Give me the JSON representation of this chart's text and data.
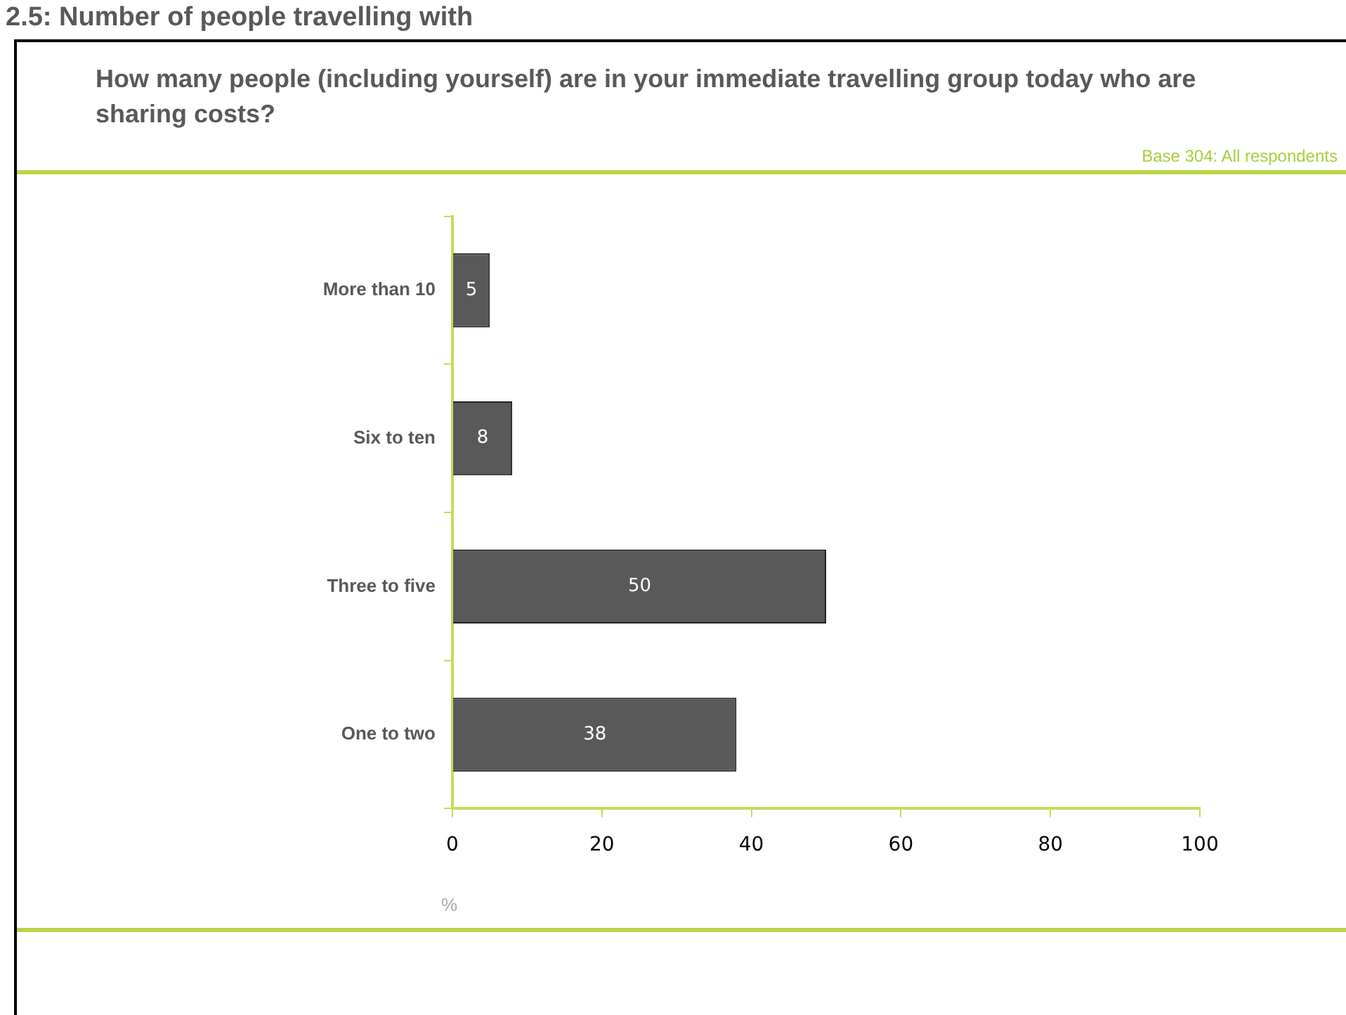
{
  "chart_data": {
    "type": "bar",
    "orientation": "horizontal",
    "title": "2.5: Number of people travelling with",
    "subtitle": "How many people (including yourself) are in your immediate travelling group today who are sharing costs?",
    "annotations": [
      "Base 304: All respondents"
    ],
    "xlabel": "%",
    "categories": [
      "More than 10",
      "Six to ten",
      "Three to five",
      "One to two"
    ],
    "values": [
      5,
      8,
      50,
      38
    ],
    "color": "#595959",
    "xlim": [
      0,
      100
    ],
    "xticks": [
      0,
      20,
      40,
      60,
      80,
      100
    ],
    "grid": false,
    "legend": false,
    "data_labels": true
  }
}
